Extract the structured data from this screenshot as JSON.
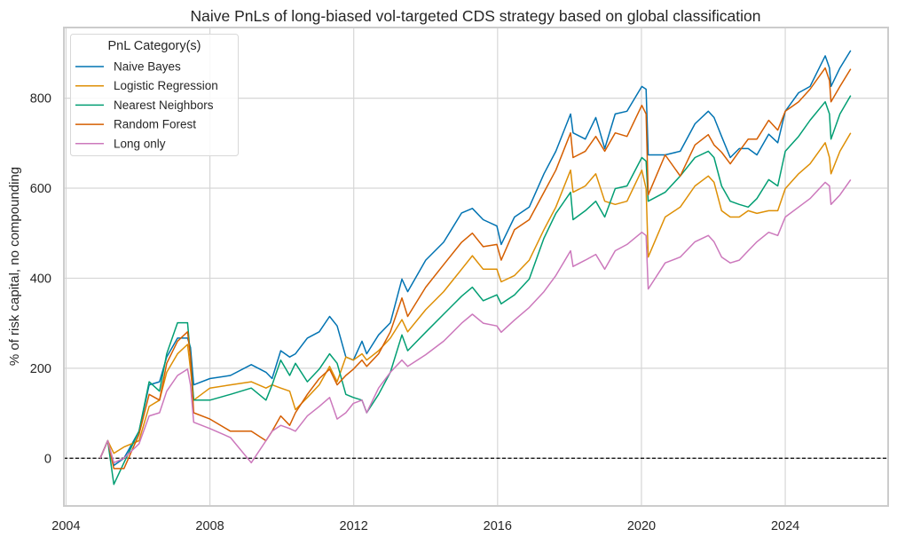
{
  "chart_data": {
    "type": "line",
    "title": "Naive PnLs of long-biased vol-targeted CDS strategy based on global classification",
    "xlabel": "",
    "ylabel": "% of risk capital, no compounding",
    "xlim": [
      2003.94,
      2026.86
    ],
    "ylim": [
      -106,
      957
    ],
    "xticks": [
      2004,
      2008,
      2012,
      2016,
      2020,
      2024
    ],
    "yticks": [
      0,
      200,
      400,
      600,
      800
    ],
    "grid": true,
    "reference_line": {
      "y": 0,
      "style": "dashed",
      "color": "#000000"
    },
    "legend": {
      "title": "PnL Category(s)",
      "placement": "top-left"
    },
    "x": [
      2004.95,
      2005.16,
      2005.33,
      2005.61,
      2006.03,
      2006.31,
      2006.6,
      2006.8,
      2007.1,
      2007.38,
      2007.46,
      2007.55,
      2008.0,
      2008.57,
      2009.15,
      2009.56,
      2009.73,
      2009.97,
      2010.22,
      2010.38,
      2010.71,
      2011.04,
      2011.33,
      2011.54,
      2011.78,
      2011.99,
      2012.23,
      2012.36,
      2012.69,
      2013.02,
      2013.34,
      2013.5,
      2014.0,
      2014.5,
      2015.0,
      2015.3,
      2015.6,
      2015.98,
      2016.1,
      2016.47,
      2016.88,
      2017.29,
      2017.62,
      2018.03,
      2018.1,
      2018.44,
      2018.73,
      2018.98,
      2019.27,
      2019.6,
      2020.01,
      2020.13,
      2020.19,
      2020.66,
      2021.08,
      2021.49,
      2021.86,
      2022.02,
      2022.23,
      2022.47,
      2022.72,
      2022.97,
      2023.21,
      2023.54,
      2023.79,
      2024.0,
      2024.37,
      2024.69,
      2025.11,
      2025.23,
      2025.27,
      2025.52,
      2025.82
    ],
    "series": [
      {
        "name": "Naive Bayes",
        "color": "#0173b2",
        "values": [
          0,
          39,
          -16,
          0,
          60,
          163,
          170,
          225,
          267,
          267,
          246,
          163,
          177,
          184,
          208,
          191,
          177,
          239,
          225,
          232,
          267,
          281,
          315,
          294,
          225,
          218,
          260,
          232,
          274,
          301,
          398,
          370,
          440,
          480,
          545,
          555,
          530,
          516,
          475,
          536,
          558,
          632,
          682,
          765,
          723,
          709,
          757,
          688,
          765,
          771,
          826,
          820,
          674,
          674,
          682,
          743,
          771,
          757,
          715,
          668,
          688,
          688,
          674,
          720,
          701,
          771,
          812,
          826,
          894,
          867,
          826,
          867,
          906
        ]
      },
      {
        "name": "Logistic Regression",
        "color": "#de8f05",
        "values": [
          0,
          39,
          11,
          25,
          39,
          115,
          129,
          191,
          232,
          253,
          198,
          129,
          156,
          163,
          170,
          156,
          163,
          156,
          149,
          108,
          135,
          163,
          204,
          170,
          225,
          218,
          232,
          218,
          239,
          267,
          308,
          281,
          330,
          370,
          420,
          450,
          420,
          420,
          392,
          406,
          440,
          508,
          558,
          640,
          591,
          605,
          632,
          571,
          564,
          571,
          640,
          599,
          447,
          536,
          558,
          605,
          627,
          613,
          550,
          536,
          536,
          550,
          544,
          550,
          550,
          599,
          632,
          654,
          701,
          668,
          632,
          682,
          723
        ]
      },
      {
        "name": "Nearest Neighbors",
        "color": "#029e73",
        "values": [
          0,
          39,
          -58,
          -10,
          60,
          170,
          149,
          232,
          301,
          301,
          225,
          129,
          129,
          142,
          156,
          129,
          163,
          218,
          184,
          211,
          170,
          198,
          232,
          211,
          142,
          135,
          129,
          101,
          142,
          191,
          274,
          239,
          280,
          320,
          360,
          380,
          350,
          363,
          343,
          363,
          398,
          489,
          544,
          591,
          530,
          550,
          571,
          536,
          599,
          605,
          668,
          660,
          571,
          591,
          627,
          668,
          682,
          668,
          605,
          571,
          564,
          558,
          577,
          619,
          605,
          682,
          715,
          751,
          792,
          765,
          709,
          765,
          806
        ]
      },
      {
        "name": "Random Forest",
        "color": "#d55e00",
        "values": [
          0,
          39,
          -23,
          -23,
          53,
          142,
          129,
          211,
          260,
          281,
          225,
          101,
          87,
          60,
          60,
          39,
          60,
          94,
          73,
          101,
          142,
          177,
          198,
          163,
          184,
          198,
          218,
          204,
          232,
          281,
          356,
          315,
          380,
          430,
          480,
          500,
          470,
          475,
          440,
          508,
          530,
          591,
          640,
          723,
          668,
          682,
          715,
          682,
          723,
          715,
          784,
          765,
          585,
          674,
          627,
          696,
          719,
          696,
          680,
          654,
          682,
          709,
          709,
          751,
          729,
          771,
          792,
          820,
          867,
          839,
          792,
          826,
          865
        ]
      },
      {
        "name": "Long only",
        "color": "#cc78bc",
        "values": [
          0,
          39,
          -10,
          0,
          32,
          94,
          101,
          149,
          184,
          198,
          163,
          80,
          66,
          46,
          -10,
          39,
          60,
          73,
          66,
          60,
          94,
          115,
          135,
          87,
          101,
          122,
          129,
          101,
          156,
          191,
          218,
          204,
          230,
          260,
          300,
          320,
          300,
          294,
          280,
          307,
          335,
          370,
          406,
          461,
          426,
          440,
          453,
          420,
          461,
          475,
          502,
          495,
          376,
          434,
          447,
          481,
          495,
          481,
          447,
          434,
          440,
          461,
          481,
          502,
          495,
          536,
          558,
          577,
          613,
          605,
          564,
          585,
          619
        ]
      }
    ]
  }
}
